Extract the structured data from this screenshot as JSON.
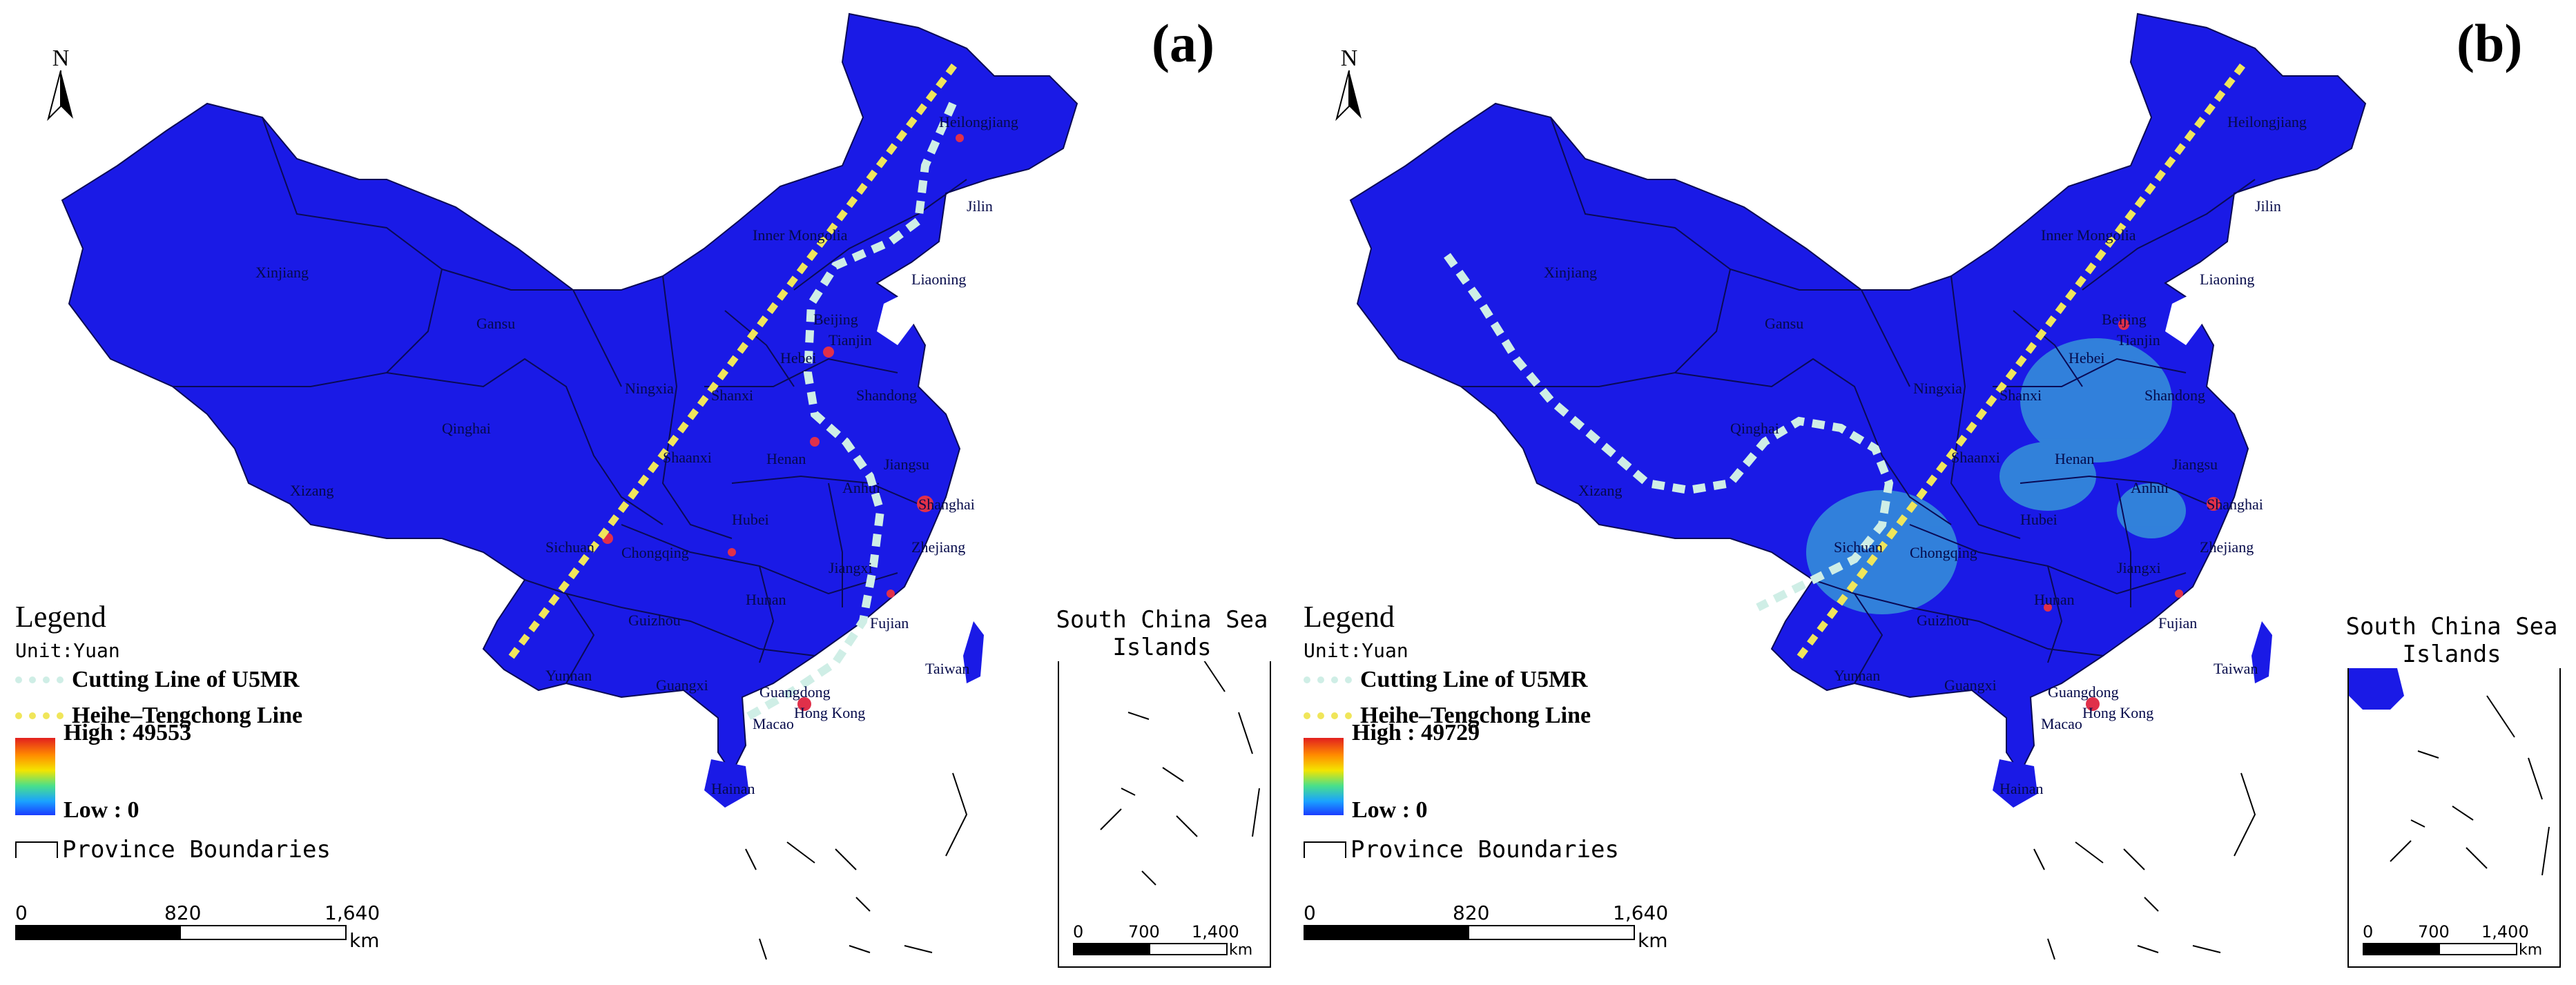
{
  "panels": [
    {
      "id": "a",
      "label": "(a)",
      "north": "N",
      "legend": {
        "title": "Legend",
        "unit": "Unit:Yuan",
        "cutting_line": "Cutting Line of U5MR",
        "hu_line": "Heihe–Tengchong Line",
        "high": "High : 49553",
        "low": "Low : 0",
        "province": "Province Boundaries"
      },
      "scale": {
        "t0": "0",
        "t1": "820",
        "t2": "1,640",
        "unit": "km"
      },
      "inset": {
        "title": "South China Sea Islands",
        "t0": "0",
        "t1": "700",
        "t2": "1,400",
        "unit": "km"
      },
      "provinces": [
        "Xinjiang",
        "Qinghai",
        "Xizang",
        "Gansu",
        "Inner Mongolia",
        "Heilongjiang",
        "Jilin",
        "Liaoning",
        "Beijing",
        "Tianjin",
        "Hebei",
        "Shanxi",
        "Shandong",
        "Henan",
        "Shaanxi",
        "Ningxia",
        "Sichuan",
        "Chongqing",
        "Hubei",
        "Anhui",
        "Jiangsu",
        "Shanghai",
        "Zhejiang",
        "Jiangxi",
        "Hunan",
        "Guizhou",
        "Yunnan",
        "Guangxi",
        "Guangdong",
        "Fujian",
        "Taiwan",
        "Hong Kong",
        "Macao",
        "Hainan"
      ]
    },
    {
      "id": "b",
      "label": "(b)",
      "north": "N",
      "legend": {
        "title": "Legend",
        "unit": "Unit:Yuan",
        "cutting_line": "Cutting Line of U5MR",
        "hu_line": "Heihe–Tengchong Line",
        "high": "High : 49729",
        "low": "Low : 0",
        "province": "Province Boundaries"
      },
      "scale": {
        "t0": "0",
        "t1": "820",
        "t2": "1,640",
        "unit": "km"
      },
      "inset": {
        "title": "South China Sea Islands",
        "t0": "0",
        "t1": "700",
        "t2": "1,400",
        "unit": "km"
      },
      "provinces": [
        "Xinjiang",
        "Qinghai",
        "Xizang",
        "Gansu",
        "Inner Mongolia",
        "Heilongjiang",
        "Jilin",
        "Liaoning",
        "Beijing",
        "Tianjin",
        "Hebei",
        "Shanxi",
        "Shandong",
        "Henan",
        "Shaanxi",
        "Ningxia",
        "Sichuan",
        "Chongqing",
        "Hubei",
        "Anhui",
        "Jiangsu",
        "Shanghai",
        "Zhejiang",
        "Jiangxi",
        "Hunan",
        "Guizhou",
        "Yunnan",
        "Guangxi",
        "Guangdong",
        "Fujian",
        "Taiwan",
        "Hong Kong",
        "Macao",
        "Hainan"
      ]
    }
  ],
  "colors": {
    "land": "#1a1ae6",
    "cutting_line": "#cfeee6",
    "hu_line": "#f0e65a",
    "hotspot": "#e0304a",
    "cyan": "#45d6d2"
  }
}
